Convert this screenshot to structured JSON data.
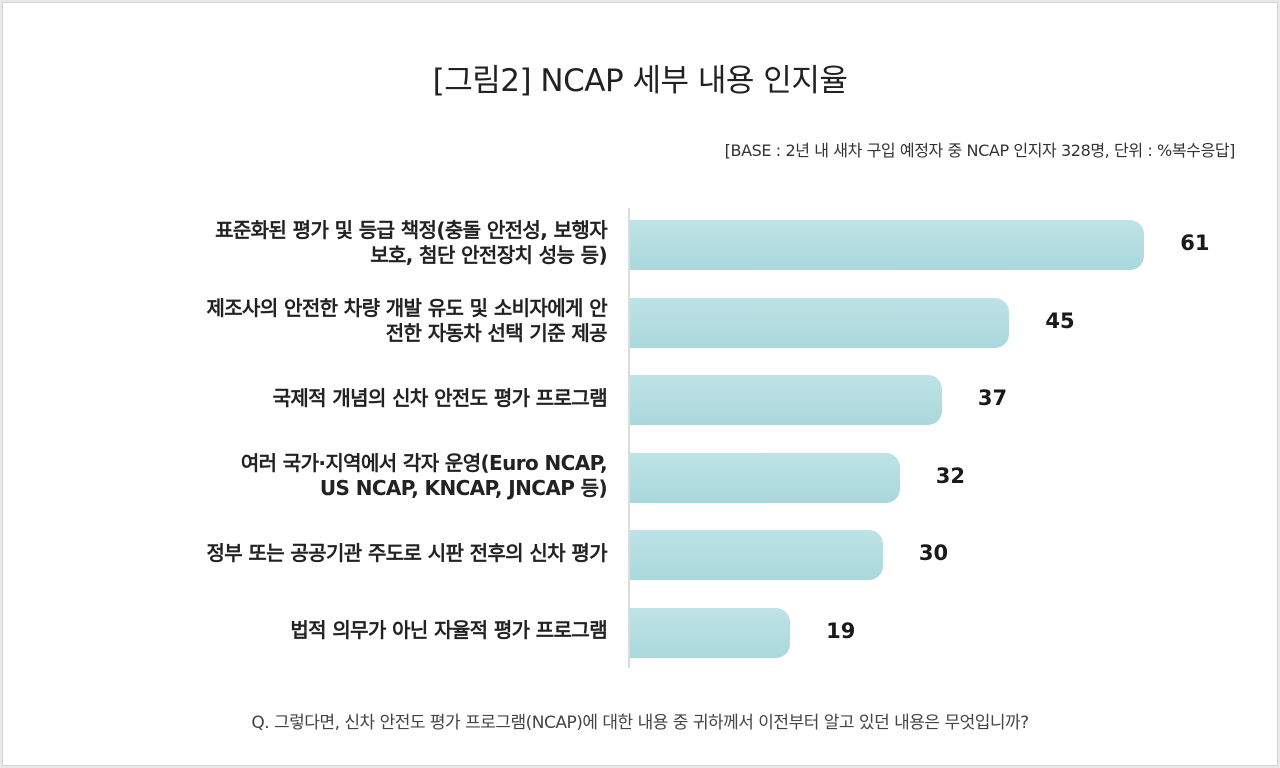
{
  "chart_data": {
    "type": "bar",
    "orientation": "horizontal",
    "title": "[그림2] NCAP 세부 내용 인지율",
    "subtitle": "[BASE : 2년 내 새차 구입 예정자 중 NCAP 인지자 328명, 단위 : %복수응답]",
    "categories": [
      [
        "표준화된 평가 및 등급 책정(충돌 안전성, 보행자",
        "보호, 첨단 안전장치 성능 등)"
      ],
      [
        "제조사의 안전한 차량 개발 유도 및 소비자에게 안",
        "전한 자동차 선택 기준 제공"
      ],
      [
        "국제적 개념의 신차 안전도 평가 프로그램"
      ],
      [
        "여러 국가·지역에서 각자 운영(Euro NCAP,",
        "US NCAP, KNCAP, JNCAP 등)"
      ],
      [
        "정부 또는 공공기관 주도로 시판 전후의 신차 평가"
      ],
      [
        "법적 의무가 아닌 자율적 평가 프로그램"
      ]
    ],
    "values": [
      61,
      45,
      37,
      32,
      30,
      19
    ],
    "xlim": [
      0,
      65
    ],
    "question": "Q. 그렇다면, 신차 안전도 평가 프로그램(NCAP)에 대한 내용 중 귀하께서 이전부터 알고 있던 내용은 무엇입니까?",
    "bar_color": "#bfe3e6",
    "bar_color_dark": "#a9d8dc",
    "value_label_color": "#1a1a1a"
  }
}
